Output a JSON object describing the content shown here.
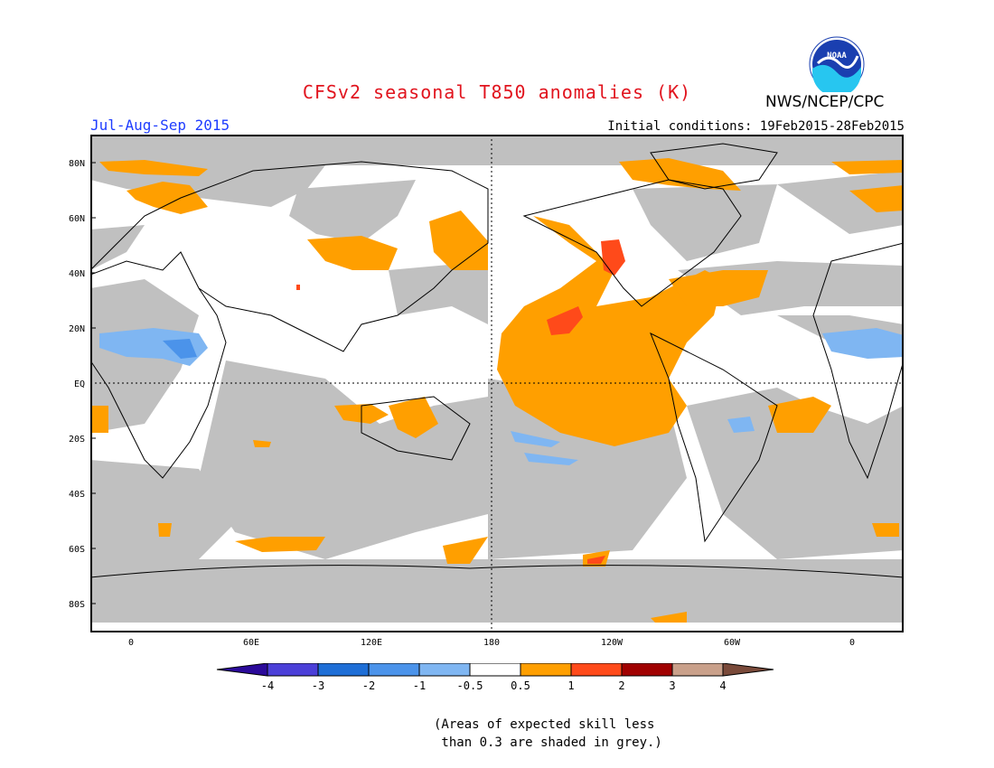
{
  "header": {
    "title": "CFSv2 seasonal T850 anomalies (K)",
    "season": "Jul-Aug-Sep 2015",
    "initial_conditions": "Initial conditions: 19Feb2015-28Feb2015",
    "agency": "NWS/NCEP/CPC",
    "logo_text": "NOAA"
  },
  "map": {
    "lat_labels": [
      "80N",
      "60N",
      "40N",
      "20N",
      "EQ",
      "20S",
      "40S",
      "60S",
      "80S"
    ],
    "lon_labels": [
      "0",
      "60E",
      "120E",
      "180",
      "120W",
      "60W",
      "0"
    ],
    "colors": {
      "grey_low_skill": "#c0c0c0",
      "warm_0_5_1": "#ff9f00",
      "warm_1_2": "#ff4a1a",
      "cool_minus1_minus0_5": "#7fb6f2",
      "cool_minus2_minus1": "#4b93ea",
      "land_outline": "#000000"
    }
  },
  "colorbar": {
    "labels": [
      "-4",
      "-3",
      "-2",
      "-1",
      "-0.5",
      "0.5",
      "1",
      "2",
      "3",
      "4"
    ],
    "colors": [
      "#2b0a9a",
      "#4b3fd8",
      "#1e6ed6",
      "#4b93ea",
      "#7fb6f2",
      "#ffffff",
      "#ff9f00",
      "#ff4a1a",
      "#a00000",
      "#c9a08a",
      "#7a4a3a"
    ]
  },
  "note": {
    "line1": "(Areas of expected skill less",
    "line2": " than 0.3 are shaded in grey.)"
  }
}
